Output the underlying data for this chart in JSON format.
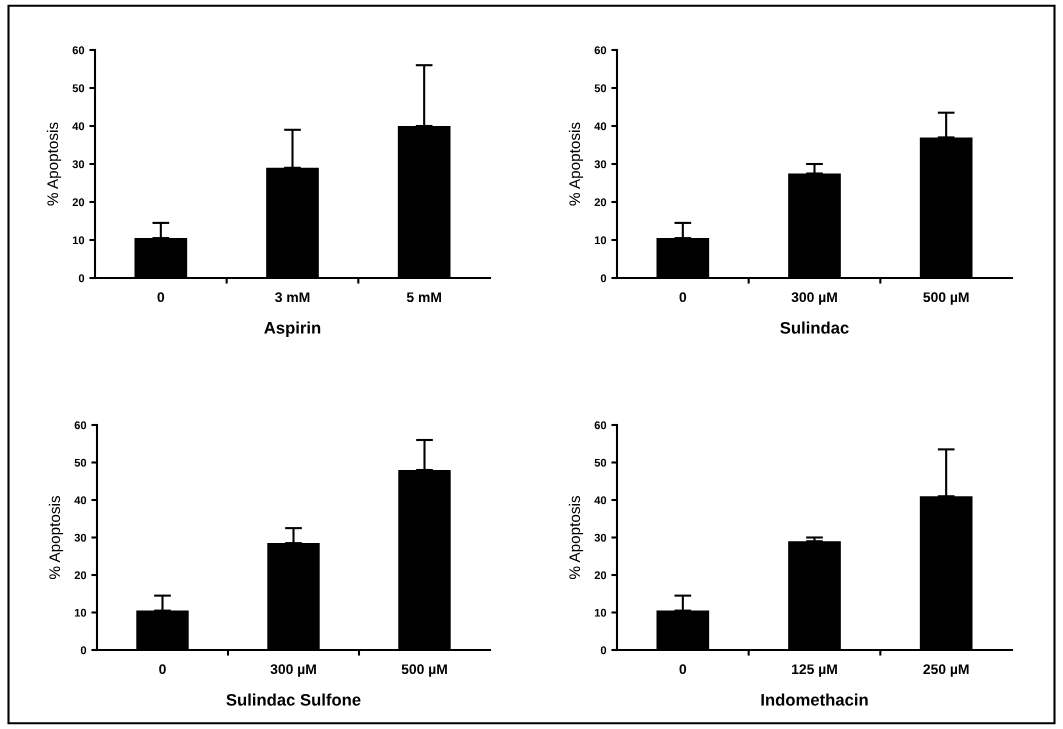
{
  "chart_data": [
    {
      "type": "bar",
      "xlabel": "Aspirin",
      "ylabel": "% Apoptosis",
      "categories": [
        "0",
        "3 mM",
        "5 mM"
      ],
      "values": [
        10.5,
        29,
        40
      ],
      "errors": [
        [
          10.5,
          14.5
        ],
        [
          29,
          39
        ],
        [
          40,
          56
        ]
      ],
      "color": "#000000",
      "ylim": [
        0,
        60
      ],
      "yticks": [
        0,
        10,
        20,
        30,
        40,
        50,
        60
      ]
    },
    {
      "type": "bar",
      "xlabel": "Sulindac",
      "ylabel": "% Apoptosis",
      "categories": [
        "0",
        "300 µM",
        "500 µM"
      ],
      "values": [
        10.5,
        27.5,
        37
      ],
      "errors": [
        [
          10.5,
          14.5
        ],
        [
          27.5,
          30
        ],
        [
          37,
          43.5
        ]
      ],
      "color": "#000000",
      "ylim": [
        0,
        60
      ],
      "yticks": [
        0,
        10,
        20,
        30,
        40,
        50,
        60
      ]
    },
    {
      "type": "bar",
      "xlabel": "Sulindac Sulfone",
      "ylabel": "% Apoptosis",
      "categories": [
        "0",
        "300 µM",
        "500 µM"
      ],
      "values": [
        10.5,
        28.5,
        48
      ],
      "errors": [
        [
          10.5,
          14.5
        ],
        [
          28.5,
          32.5
        ],
        [
          48,
          56
        ]
      ],
      "color": "#000000",
      "ylim": [
        0,
        60
      ],
      "yticks": [
        0,
        10,
        20,
        30,
        40,
        50,
        60
      ]
    },
    {
      "type": "bar",
      "xlabel": "Indomethacin",
      "ylabel": "% Apoptosis",
      "categories": [
        "0",
        "125 µM",
        "250 µM"
      ],
      "values": [
        10.5,
        29,
        41
      ],
      "errors": [
        [
          10.5,
          14.5
        ],
        [
          29,
          30
        ],
        [
          41,
          53.5
        ]
      ],
      "color": "#000000",
      "ylim": [
        0,
        60
      ],
      "yticks": [
        0,
        10,
        20,
        30,
        40,
        50,
        60
      ]
    }
  ]
}
